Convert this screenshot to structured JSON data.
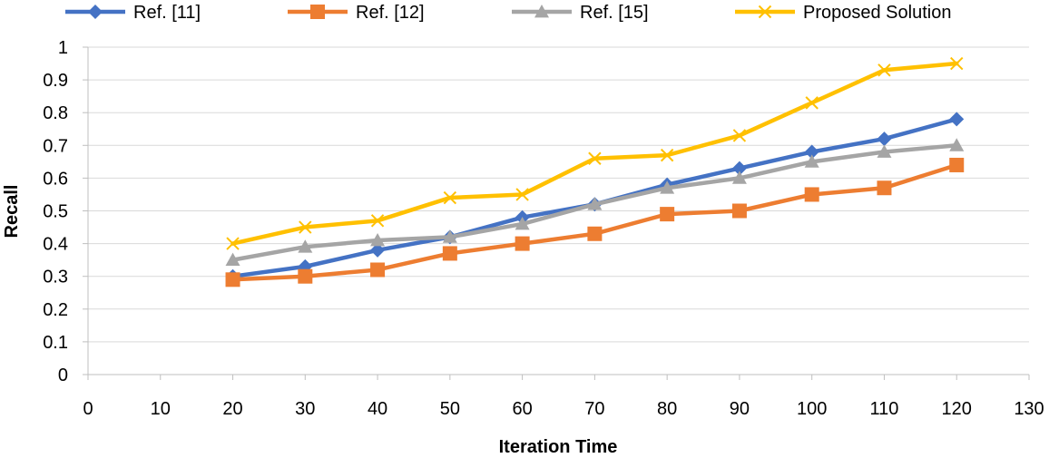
{
  "chart_data": {
    "type": "line",
    "title": "",
    "xlabel": "Iteration Time",
    "ylabel": "Recall",
    "xlim": [
      0,
      130
    ],
    "ylim": [
      0,
      1
    ],
    "xticks": [
      0,
      10,
      20,
      30,
      40,
      50,
      60,
      70,
      80,
      90,
      100,
      110,
      120,
      130
    ],
    "yticks": [
      0,
      0.1,
      0.2,
      0.3,
      0.4,
      0.5,
      0.6,
      0.7,
      0.8,
      0.9,
      1
    ],
    "xtick_labels": [
      "0",
      "10",
      "20",
      "30",
      "40",
      "50",
      "60",
      "70",
      "80",
      "90",
      "100",
      "110",
      "120",
      "130"
    ],
    "ytick_labels": [
      "0",
      "0.1",
      "0.2",
      "0.3",
      "0.4",
      "0.5",
      "0.6",
      "0.7",
      "0.8",
      "0.9",
      "1"
    ],
    "grid": true,
    "legend_position": "top",
    "x": [
      20,
      30,
      40,
      50,
      60,
      70,
      80,
      90,
      100,
      110,
      120
    ],
    "series": [
      {
        "name": "Ref. [11]",
        "color": "#4472C4",
        "marker": "diamond",
        "values": [
          0.3,
          0.33,
          0.38,
          0.42,
          0.48,
          0.52,
          0.58,
          0.63,
          0.68,
          0.72,
          0.78
        ]
      },
      {
        "name": "Ref. [12]",
        "color": "#ED7D31",
        "marker": "square",
        "values": [
          0.29,
          0.3,
          0.32,
          0.37,
          0.4,
          0.43,
          0.49,
          0.5,
          0.55,
          0.57,
          0.64
        ]
      },
      {
        "name": "Ref. [15]",
        "color": "#A5A5A5",
        "marker": "triangle",
        "values": [
          0.35,
          0.39,
          0.41,
          0.42,
          0.46,
          0.52,
          0.57,
          0.6,
          0.65,
          0.68,
          0.7
        ]
      },
      {
        "name": "Proposed Solution",
        "color": "#FFC000",
        "marker": "x",
        "values": [
          0.4,
          0.45,
          0.47,
          0.54,
          0.55,
          0.66,
          0.67,
          0.73,
          0.83,
          0.93,
          0.95
        ]
      }
    ]
  }
}
